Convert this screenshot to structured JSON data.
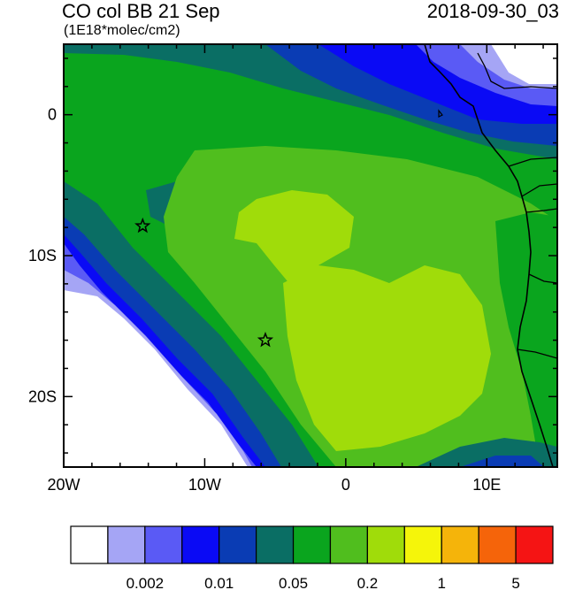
{
  "header": {
    "title": "CO col BB 21 Sep",
    "units": "(1E18*molec/cm2)",
    "timestamp": "2018-09-30_03"
  },
  "map": {
    "lon_range": [
      -20,
      15
    ],
    "lat_range": [
      -25,
      5
    ],
    "x_ticks": [
      {
        "lon": -20,
        "label": "20W"
      },
      {
        "lon": -10,
        "label": "10W"
      },
      {
        "lon": 0,
        "label": "0"
      },
      {
        "lon": 10,
        "label": "10E"
      }
    ],
    "y_ticks": [
      {
        "lat": 0,
        "label": "0"
      },
      {
        "lat": -10,
        "label": "10S"
      },
      {
        "lat": -20,
        "label": "20S"
      }
    ],
    "markers": [
      {
        "name": "star-marker-ascension",
        "lon": -14.4,
        "lat": -7.9
      },
      {
        "name": "star-marker-st-helena",
        "lon": -5.7,
        "lat": -16.0
      }
    ]
  },
  "colorbar": {
    "colors": [
      "#ffffff",
      "#a5a5f5",
      "#5a5af5",
      "#0a0af5",
      "#0a3cb4",
      "#0a6e64",
      "#0aa51e",
      "#50be1e",
      "#a0dc0a",
      "#f5f50a",
      "#f5b40a",
      "#f5640a",
      "#f51414"
    ],
    "labels": [
      {
        "boundary": 2,
        "text": "0.002"
      },
      {
        "boundary": 4,
        "text": "0.01"
      },
      {
        "boundary": 6,
        "text": "0.05"
      },
      {
        "boundary": 8,
        "text": "0.2"
      },
      {
        "boundary": 10,
        "text": "1"
      },
      {
        "boundary": 12,
        "text": "5"
      }
    ]
  }
}
